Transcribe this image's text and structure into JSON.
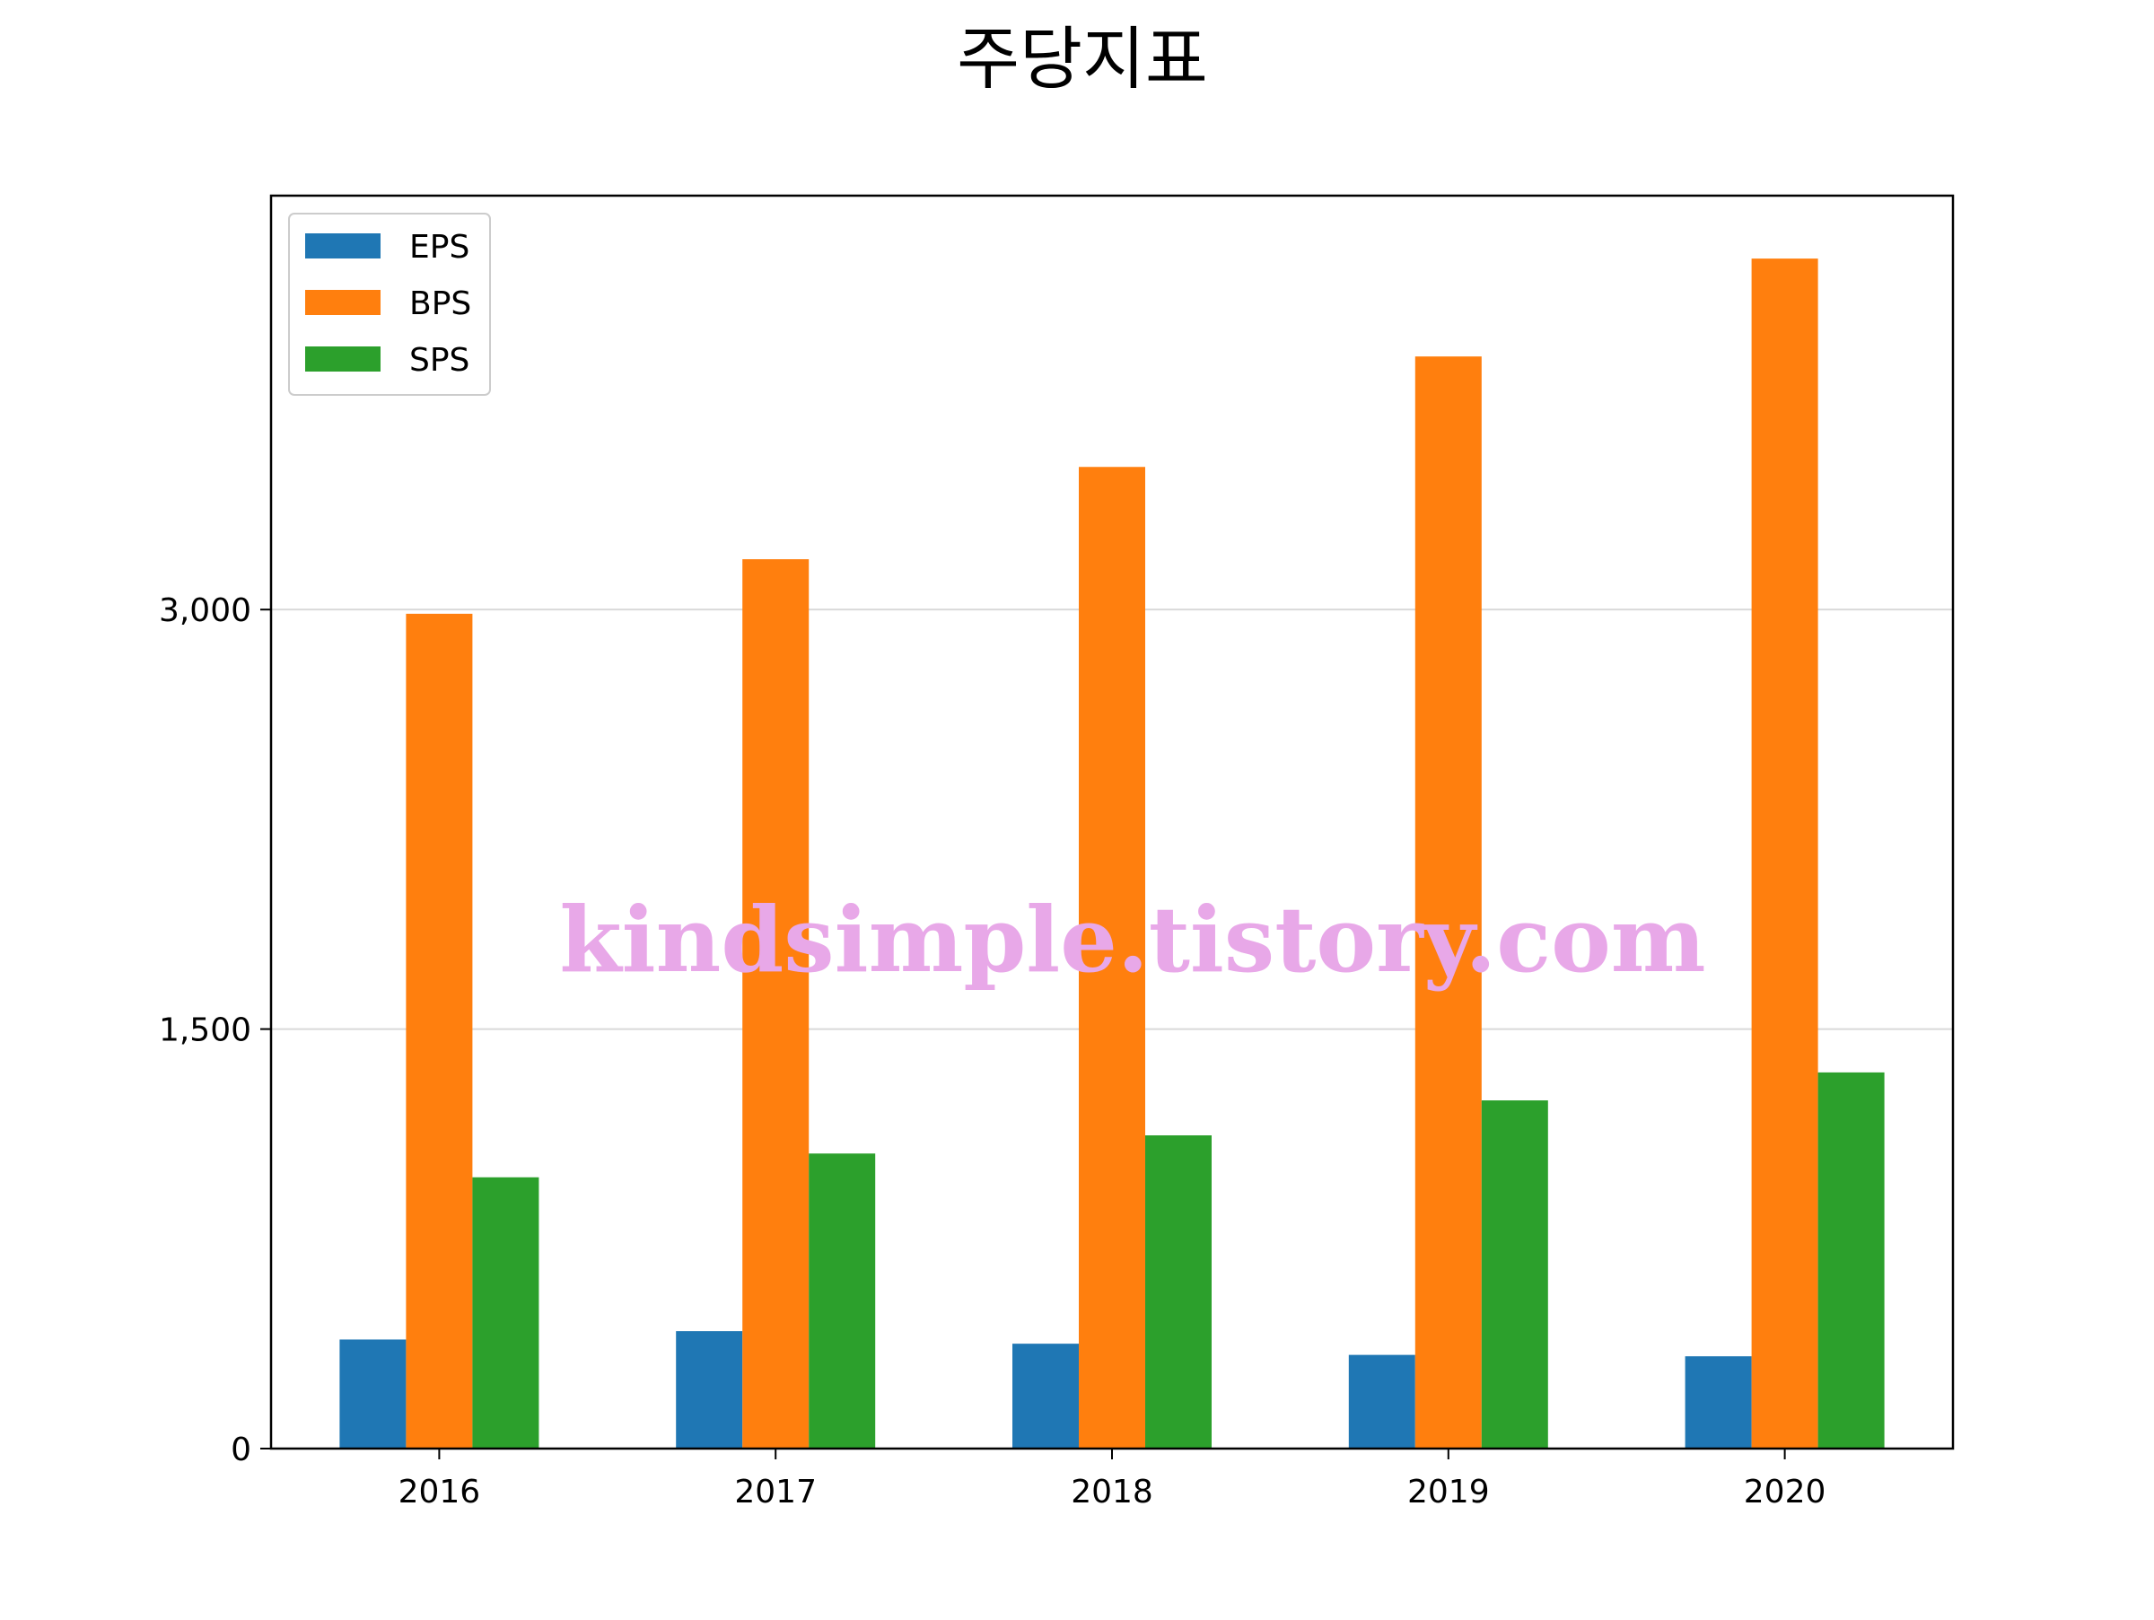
{
  "chart_data": {
    "type": "bar",
    "title": "주당지표",
    "xlabel": "",
    "ylabel": "",
    "categories": [
      "2016",
      "2017",
      "2018",
      "2019",
      "2020"
    ],
    "series": [
      {
        "name": "EPS",
        "color": "#1f77b4",
        "values": [
          390,
          420,
          375,
          335,
          330
        ]
      },
      {
        "name": "BPS",
        "color": "#ff7f0e",
        "values": [
          2985,
          3180,
          3510,
          3905,
          4255
        ]
      },
      {
        "name": "SPS",
        "color": "#2ca02c",
        "values": [
          970,
          1055,
          1120,
          1245,
          1345
        ]
      }
    ],
    "yticks": [
      0,
      1500,
      3000
    ],
    "ytick_labels": [
      "0",
      "1,500",
      "3,000"
    ],
    "ylim": [
      0,
      4480
    ],
    "grid": "y",
    "legend_position": "top-left",
    "watermark": "kindsimple.tistory.com"
  }
}
